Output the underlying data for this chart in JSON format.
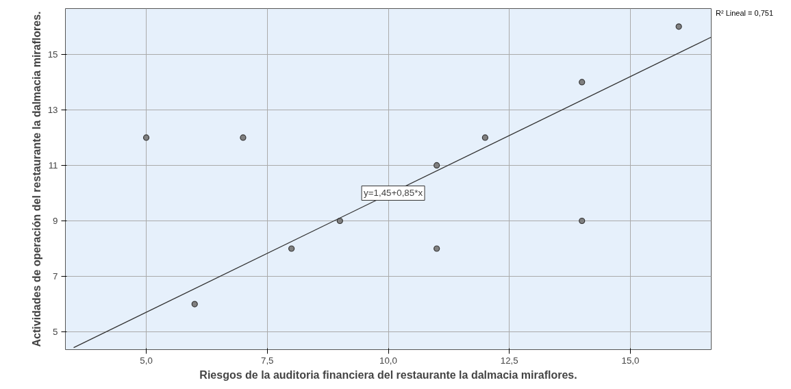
{
  "chart_data": {
    "type": "scatter",
    "xlabel": "Riesgos de la auditoria financiera del restaurante la dalmacia miraflores.",
    "ylabel": "Actividades de operación del restaurante la dalmacia miraflores.",
    "series": [
      {
        "color": "#808080",
        "x": [
          5,
          6,
          7,
          8,
          9,
          11,
          11,
          12,
          14,
          14,
          16
        ],
        "values": [
          12,
          6,
          12,
          8,
          9,
          11,
          8,
          12,
          14,
          9,
          16
        ]
      },
      {
        "type": "line",
        "marker": "none",
        "color": "#333333",
        "x": [
          3.5,
          16.67
        ],
        "values": [
          4.43,
          15.62
        ]
      }
    ],
    "xlim": [
      3.33,
      16.67
    ],
    "ylim": [
      4.36,
      16.65
    ],
    "xticks": [
      {
        "value": 5,
        "label": "5,0"
      },
      {
        "value": 7.5,
        "label": "7,5"
      },
      {
        "value": 10,
        "label": "10,0"
      },
      {
        "value": 12.5,
        "label": "12,5"
      },
      {
        "value": 15,
        "label": "15,0"
      }
    ],
    "yticks": [
      5,
      7,
      9,
      11,
      13,
      15
    ],
    "annotations": [
      {
        "text": "y=1,45+0,85*x",
        "x": 10.1,
        "y": 10.0
      },
      "R² Lineal = 0,751"
    ],
    "grid": true,
    "marker": "circle"
  }
}
